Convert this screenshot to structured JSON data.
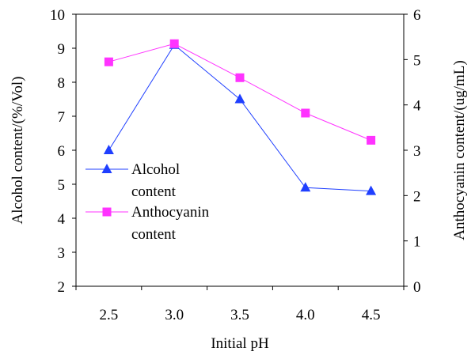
{
  "chart_data": {
    "type": "line",
    "title": "",
    "xlabel": "Initial pH",
    "ylabel_left": "Alcohol content/(%/Vol)",
    "ylabel_right": "Anthocyanin content/(ug/mL)",
    "categories": [
      "2.5",
      "3.0",
      "3.5",
      "4.0",
      "4.5"
    ],
    "ylim_left": [
      2,
      10
    ],
    "yticks_left": [
      "2",
      "3",
      "4",
      "5",
      "6",
      "7",
      "8",
      "9",
      "10"
    ],
    "ylim_right": [
      0,
      6
    ],
    "yticks_right": [
      "0",
      "1",
      "2",
      "3",
      "4",
      "5",
      "6"
    ],
    "grid": false,
    "legend_position": "center-left",
    "series": [
      {
        "name": "Alcohol content",
        "legend_lines": [
          "Alcohol",
          "content"
        ],
        "axis": "left",
        "marker": "triangle",
        "color": "#1f3fff",
        "values": [
          6.0,
          9.1,
          7.5,
          4.9,
          4.8
        ]
      },
      {
        "name": "Anthocyanin content",
        "legend_lines": [
          "Anthocyanin",
          "content"
        ],
        "axis": "right",
        "marker": "square",
        "color": "#ff33ff",
        "values": [
          4.95,
          5.35,
          4.6,
          3.82,
          3.22
        ]
      }
    ]
  }
}
